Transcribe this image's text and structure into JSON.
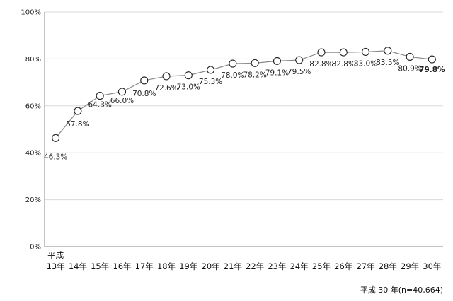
{
  "chart_data": {
    "type": "line",
    "x_prefix": "平成",
    "categories": [
      "13年",
      "14年",
      "15年",
      "16年",
      "17年",
      "18年",
      "19年",
      "20年",
      "21年",
      "22年",
      "23年",
      "24年",
      "25年",
      "26年",
      "27年",
      "28年",
      "29年",
      "30年"
    ],
    "values": [
      46.3,
      57.8,
      64.3,
      66.0,
      70.8,
      72.6,
      73.0,
      75.3,
      78.0,
      78.2,
      79.1,
      79.5,
      82.8,
      82.8,
      83.0,
      83.5,
      80.9,
      79.8
    ],
    "data_labels": [
      "46.3%",
      "57.8%",
      "64.3%",
      "66.0%",
      "70.8%",
      "72.6%",
      "73.0%",
      "75.3%",
      "78.0%",
      "78.2%",
      "79.1%",
      "79.5%",
      "82.8%",
      "82.8%",
      "83.0%",
      "83.5%",
      "80.9%",
      "79.8%"
    ],
    "yticks": [
      "0%",
      "20%",
      "40%",
      "60%",
      "80%",
      "100%"
    ],
    "ylim": [
      0,
      100
    ],
    "grid": true,
    "marker": "open-circle",
    "highlight_last_label": true
  },
  "footnote": "平成 30 年(n=40,664)"
}
